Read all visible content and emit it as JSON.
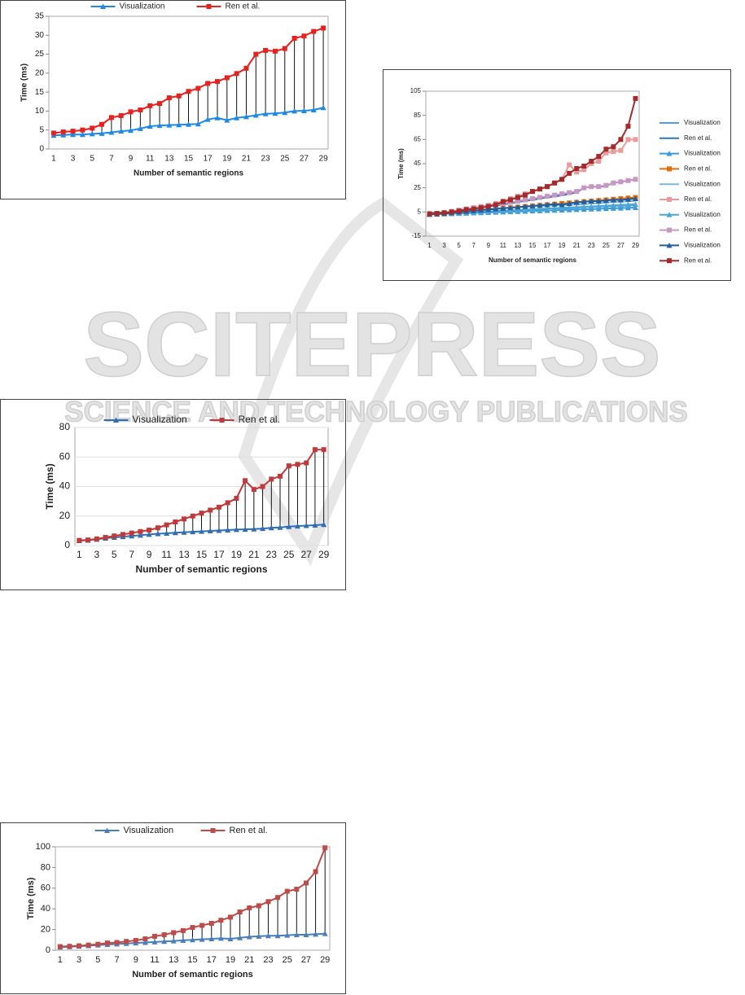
{
  "chart_data": [
    {
      "type": "line",
      "x_label": "Number of semantic regions",
      "y_label": "Time (ms)",
      "categories": [
        1,
        null,
        3,
        null,
        5,
        null,
        7,
        null,
        9,
        null,
        11,
        null,
        13,
        null,
        15,
        null,
        17,
        null,
        19,
        null,
        21,
        null,
        23,
        null,
        25,
        null,
        27,
        null,
        29
      ],
      "ylim": [
        0,
        35
      ],
      "yticks": [
        0,
        5,
        10,
        15,
        20,
        25,
        30,
        35
      ],
      "grid": false,
      "legend": "top",
      "drop_lines": true,
      "series": [
        {
          "name": "Visualization",
          "color": "#1e88e5",
          "marker": "triangle",
          "values": [
            3.6,
            3.7,
            3.8,
            3.8,
            4.0,
            4.1,
            4.4,
            4.7,
            4.9,
            5.4,
            6.0,
            6.2,
            6.3,
            6.4,
            6.5,
            6.6,
            7.8,
            8.2,
            7.6,
            8.2,
            8.5,
            8.9,
            9.3,
            9.4,
            9.6,
            10.0,
            10.1,
            10.3,
            10.9
          ]
        },
        {
          "name": "Ren et al.",
          "color": "#e8201e",
          "marker": "square",
          "values": [
            4.2,
            4.5,
            4.7,
            5.0,
            5.5,
            6.5,
            8.3,
            8.8,
            9.8,
            10.3,
            11.4,
            12.0,
            13.5,
            14.0,
            15.2,
            16.0,
            17.3,
            17.8,
            18.8,
            19.9,
            21.3,
            25.0,
            26.0,
            25.8,
            26.5,
            29.2,
            29.8,
            31.0,
            31.9
          ]
        }
      ]
    },
    {
      "type": "line",
      "x_label": "Number of semantic regions",
      "y_label": "Time (ms)",
      "categories": [
        1,
        null,
        3,
        null,
        5,
        null,
        7,
        null,
        9,
        null,
        11,
        null,
        13,
        null,
        15,
        null,
        17,
        null,
        19,
        null,
        21,
        null,
        23,
        null,
        25,
        null,
        27,
        null,
        29
      ],
      "ylim": [
        -15,
        105
      ],
      "yticks": [
        -15,
        5,
        25,
        45,
        65,
        85,
        105
      ],
      "grid": false,
      "legend": "right",
      "drop_lines": false,
      "series": [
        {
          "name": "Visualization",
          "color": "#5b9bd5",
          "marker": "none",
          "values": [
            3.6,
            3.7,
            3.8,
            3.8,
            4.0,
            4.1,
            4.4,
            4.7,
            4.9,
            5.4,
            6.0,
            6.2,
            6.3,
            6.4,
            6.5,
            6.6,
            7.8,
            8.2,
            7.6,
            8.2,
            8.5,
            8.9,
            9.3,
            9.4,
            9.6,
            10.0,
            10.1,
            10.3,
            10.9
          ]
        },
        {
          "name": "Ren et al.",
          "color": "#2e75b6",
          "marker": "none",
          "values": [
            4.2,
            4.5,
            4.7,
            5.0,
            5.5,
            6.5,
            8.3,
            8.8,
            9.8,
            10.3,
            11.4,
            12.0,
            13.5,
            14.0,
            15.2,
            16.0,
            17.3,
            17.8,
            18.8,
            19.9,
            21.3,
            25.0,
            26.0,
            25.8,
            26.5,
            29.2,
            29.8,
            31.0,
            31.9
          ]
        },
        {
          "name": "Visualization",
          "color": "#3a9ad9",
          "marker": "triangle",
          "values": [
            3,
            3.2,
            3.4,
            3.6,
            3.8,
            4,
            4.2,
            4.4,
            4.6,
            4.8,
            5,
            5.2,
            5.4,
            5.6,
            5.8,
            6,
            6.2,
            6.4,
            6.6,
            6.8,
            7,
            7.2,
            7.4,
            7.6,
            7.8,
            8,
            8.2,
            8.4,
            8.6
          ]
        },
        {
          "name": "Ren et al.",
          "color": "#e46c0a",
          "marker": "square",
          "values": [
            3,
            3.5,
            4,
            4.5,
            5,
            5.5,
            6,
            6.5,
            7,
            7.5,
            8,
            8.5,
            9,
            9.5,
            10,
            10.5,
            11,
            11.5,
            12,
            12.5,
            13,
            13.5,
            14,
            14.5,
            15,
            15.5,
            16,
            16.5,
            17
          ]
        },
        {
          "name": "Visualization",
          "color": "#79b8e8",
          "marker": "none",
          "values": [
            3.3,
            3.6,
            4.2,
            5,
            5.5,
            6,
            6.5,
            7,
            7.5,
            8,
            8.3,
            8.7,
            9,
            9.3,
            9.6,
            9.9,
            10.2,
            10.5,
            10.8,
            11,
            11.2,
            11.5,
            12,
            12.3,
            12.8,
            13.2,
            13.5,
            13.8,
            14.2
          ]
        },
        {
          "name": "Ren et al.",
          "color": "#e99a9a",
          "marker": "square",
          "values": [
            3.5,
            3.8,
            4.5,
            5.5,
            6.5,
            7.5,
            8.5,
            9.5,
            10.5,
            12,
            14,
            16,
            18,
            20,
            22,
            24,
            26,
            29,
            32,
            44,
            38,
            40,
            45,
            47,
            54,
            55,
            56,
            65,
            65
          ]
        },
        {
          "name": "Visualization",
          "color": "#4aa6d8",
          "marker": "triangle",
          "values": [
            3,
            3.3,
            3.6,
            3.9,
            4.2,
            4.5,
            4.8,
            5.1,
            5.4,
            5.7,
            6,
            6.3,
            6.6,
            6.9,
            7.2,
            7.5,
            7.8,
            8.1,
            8.4,
            8.7,
            9,
            9.3,
            9.6,
            9.9,
            10.2,
            10.5,
            10.8,
            11.1,
            11.4
          ]
        },
        {
          "name": "Ren et al.",
          "color": "#c597c2",
          "marker": "square",
          "values": [
            3,
            3.5,
            4,
            5,
            6,
            7,
            8,
            9,
            10,
            11,
            12,
            13,
            14,
            15,
            16,
            17,
            18,
            19,
            20,
            21,
            22,
            25,
            26,
            26,
            27,
            29,
            30,
            31,
            32
          ]
        },
        {
          "name": "Visualization",
          "color": "#1f5f9f",
          "marker": "triangle",
          "values": [
            3,
            3.3,
            3.8,
            4.3,
            5,
            5.5,
            6,
            6.5,
            7,
            7.5,
            8,
            8.5,
            9,
            9.5,
            10,
            10.5,
            11,
            11.5,
            11,
            12,
            13,
            13.5,
            14,
            14,
            14.5,
            15,
            15,
            15.5,
            16
          ]
        },
        {
          "name": "Ren et al.",
          "color": "#a52a2a",
          "marker": "square",
          "values": [
            3.5,
            3.8,
            4.3,
            5,
            5.8,
            7,
            7.5,
            8.5,
            9.5,
            11,
            13.5,
            15,
            17,
            19,
            22,
            24,
            26,
            29,
            32,
            37,
            41,
            43,
            47,
            51,
            57,
            59,
            65,
            76,
            99
          ]
        }
      ]
    },
    {
      "type": "line",
      "x_label": "Number of semantic regions",
      "y_label": "Time (ms)",
      "categories": [
        1,
        null,
        3,
        null,
        5,
        null,
        7,
        null,
        9,
        null,
        11,
        null,
        13,
        null,
        15,
        null,
        17,
        null,
        19,
        null,
        21,
        null,
        23,
        null,
        25,
        null,
        27,
        null,
        29
      ],
      "ylim": [
        0,
        80
      ],
      "yticks": [
        0,
        20,
        40,
        60,
        80
      ],
      "grid": true,
      "legend": "top",
      "drop_lines": true,
      "series": [
        {
          "name": "Visualization",
          "color": "#2f6db5",
          "marker": "triangle",
          "values": [
            3.3,
            3.6,
            4.2,
            5,
            5.5,
            6,
            6.5,
            7,
            7.5,
            8,
            8.3,
            8.7,
            9,
            9.3,
            9.6,
            9.9,
            10.2,
            10.5,
            10.8,
            11,
            11.2,
            11.5,
            12,
            12.3,
            12.8,
            13.2,
            13.5,
            13.8,
            14.2
          ]
        },
        {
          "name": "Ren et al.",
          "color": "#c0393b",
          "marker": "square",
          "values": [
            3.5,
            3.8,
            4.5,
            5.5,
            6.5,
            7.5,
            8.5,
            9.5,
            10.5,
            12,
            14,
            16,
            18,
            20,
            22,
            24,
            26,
            29,
            32,
            44,
            38,
            40,
            45,
            47,
            54,
            55,
            56,
            65,
            65
          ]
        }
      ]
    },
    {
      "type": "line",
      "x_label": "Number of semantic regions",
      "y_label": "Time (ms)",
      "categories": [
        1,
        null,
        3,
        null,
        5,
        null,
        7,
        null,
        9,
        null,
        11,
        null,
        13,
        null,
        15,
        null,
        17,
        null,
        19,
        null,
        21,
        null,
        23,
        null,
        25,
        null,
        27,
        null,
        29
      ],
      "ylim": [
        0,
        100
      ],
      "yticks": [
        0,
        20,
        40,
        60,
        80,
        100
      ],
      "grid": false,
      "legend": "top",
      "drop_lines": true,
      "series": [
        {
          "name": "Visualization",
          "color": "#4a7ebb",
          "marker": "triangle",
          "values": [
            3,
            3.3,
            3.8,
            4.3,
            5,
            5.5,
            6,
            6.5,
            7,
            7.5,
            8,
            8.5,
            9,
            9.5,
            10,
            10.5,
            11,
            11.5,
            11,
            12,
            13,
            13.5,
            14,
            14,
            14.5,
            15,
            15,
            15.5,
            16
          ]
        },
        {
          "name": "Ren et al.",
          "color": "#be4b48",
          "marker": "square",
          "values": [
            3.5,
            3.8,
            4.3,
            5,
            5.8,
            7,
            7.5,
            8.5,
            9.5,
            11,
            13.5,
            15,
            17,
            19,
            22,
            24,
            26,
            29,
            32,
            37,
            41,
            43,
            47,
            51,
            57,
            59,
            65,
            76,
            99
          ]
        }
      ]
    }
  ],
  "watermark": {
    "title": "SCITEPRESS",
    "subtitle": "SCIENCE AND TECHNOLOGY PUBLICATIONS"
  }
}
